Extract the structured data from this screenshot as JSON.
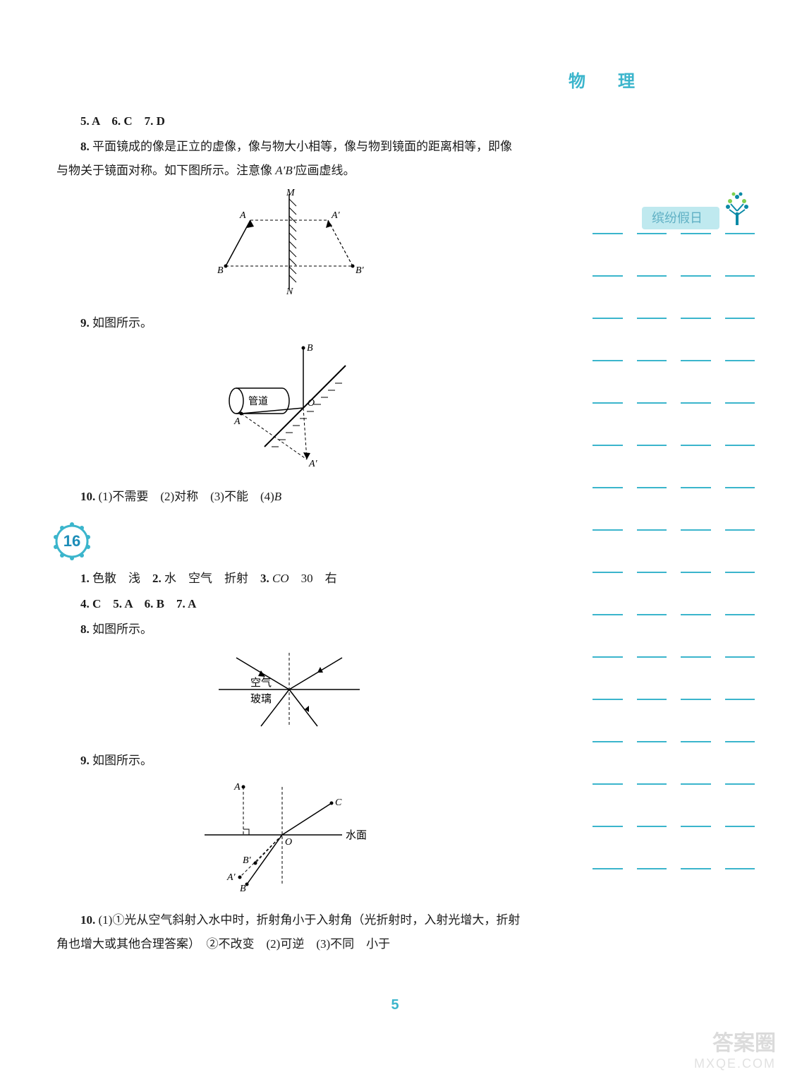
{
  "header": {
    "title": "物 理"
  },
  "page_number": "5",
  "answers": {
    "line_567": "5. A　6. C　7. D",
    "q8": "8. 平面镜成的像是正立的虚像，像与物大小相等，像与物到镜面的距离相等，即像与物关于镜面对称。如下图所示。注意像 A′B′应画虚线。",
    "q9": "9. 如图所示。",
    "q10": "10. (1)不需要　(2)对称　(3)不能　(4)B"
  },
  "section16": {
    "number": "16",
    "line1": "1. 色散　浅　2. 水　空气　折射　3. CO　30　右",
    "line2": "4. C　5. A　6. B　7. A",
    "q8": "8. 如图所示。",
    "q9": "9. 如图所示。",
    "q10": "10. (1)①光从空气斜射入水中时，折射角小于入射角（光折射时，入射光增大，折射角也增大或其他合理答案）　②不改变　(2)可逆　(3)不同　小于"
  },
  "figures": {
    "mirror": {
      "labels": {
        "M": "M",
        "N": "N",
        "A": "A",
        "B": "B",
        "Ap": "A′",
        "Bp": "B′"
      },
      "stroke": "#000000"
    },
    "pipe": {
      "labels": {
        "A": "A",
        "B": "B",
        "O": "O",
        "Ap": "A′",
        "pipe": "管道"
      },
      "stroke": "#000000"
    },
    "refraction1": {
      "labels": {
        "air": "空气",
        "glass": "玻璃"
      },
      "stroke": "#000000"
    },
    "refraction2": {
      "labels": {
        "A": "A",
        "B": "B",
        "Ap": "A′",
        "Bp": "B′",
        "C": "C",
        "O": "O",
        "surface": "水面"
      },
      "stroke": "#000000"
    }
  },
  "sidebar": {
    "badge_text": "缤纷假日",
    "badge_bg": "#bfe9ef",
    "badge_text_color": "#5fb0c4",
    "tree_color": "#0a8aa6",
    "line_color": "#3bb5cc",
    "dashes_per_row": 4,
    "rows": 16
  },
  "watermark": {
    "top": "答案圈",
    "bottom": "MXQE.COM"
  },
  "colors": {
    "accent": "#3bb5cc",
    "text": "#1a1a1a",
    "bg": "#ffffff"
  }
}
